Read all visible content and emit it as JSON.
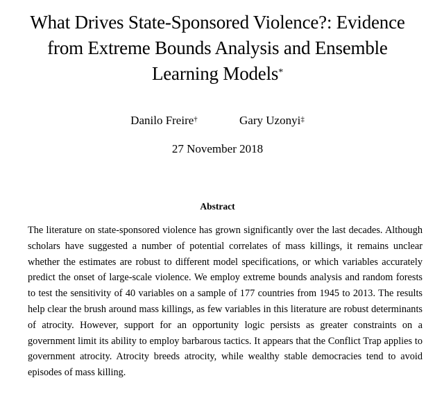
{
  "paper": {
    "title_line1": "What Drives State-Sponsored Violence?: Evidence",
    "title_line2": "from Extreme Bounds Analysis and Ensemble",
    "title_line3": "Learning Models",
    "title_mark": "*",
    "authors": [
      {
        "name": "Danilo Freire",
        "mark": "†"
      },
      {
        "name": "Gary Uzonyi",
        "mark": "‡"
      }
    ],
    "date": "27 November 2018",
    "abstract_heading": "Abstract",
    "abstract_text": "The literature on state-sponsored violence has grown significantly over the last decades. Although scholars have suggested a number of potential correlates of mass killings, it remains unclear whether the estimates are robust to different model specifications, or which variables accurately predict the onset of large-scale violence. We employ extreme bounds analysis and random forests to test the sensitivity of 40 variables on a sample of 177 countries from 1945 to 2013. The results help clear the brush around mass killings, as few variables in this literature are robust determinants of atrocity. However, support for an opportunity logic persists as greater constraints on a government limit its ability to employ barbarous tactics. It appears that the Conflict Trap applies to government atrocity. Atrocity breeds atrocity, while wealthy stable democracies tend to avoid episodes of mass killing."
  }
}
